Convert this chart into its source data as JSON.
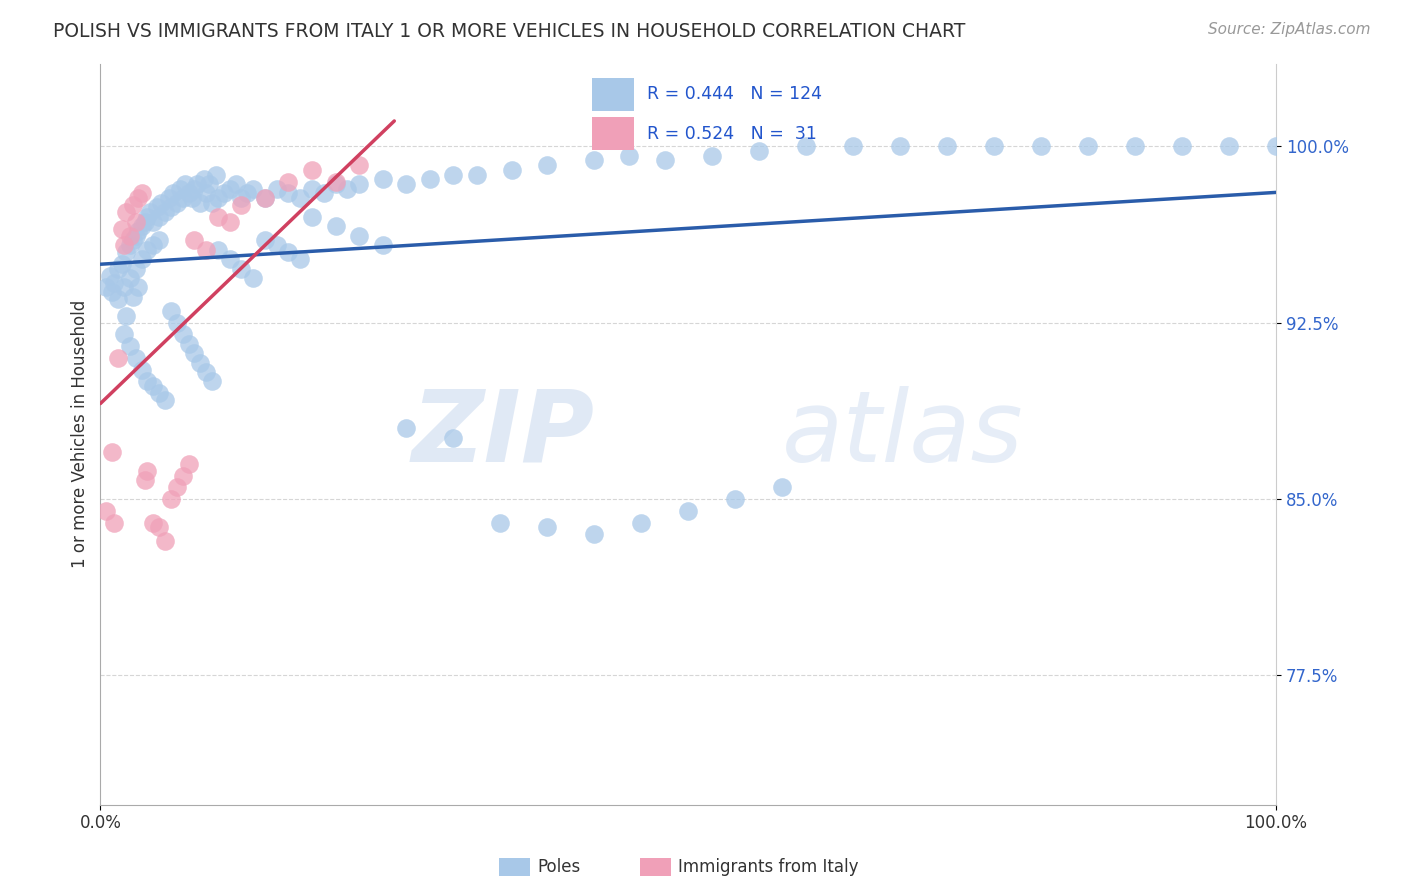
{
  "title": "POLISH VS IMMIGRANTS FROM ITALY 1 OR MORE VEHICLES IN HOUSEHOLD CORRELATION CHART",
  "source": "Source: ZipAtlas.com",
  "ylabel": "1 or more Vehicles in Household",
  "y_tick_labels": [
    "77.5%",
    "85.0%",
    "92.5%",
    "100.0%"
  ],
  "y_tick_positions": [
    0.775,
    0.85,
    0.925,
    1.0
  ],
  "xlim": [
    0.0,
    1.0
  ],
  "ylim": [
    0.72,
    1.035
  ],
  "legend_blue_label": "Poles",
  "legend_pink_label": "Immigrants from Italy",
  "blue_R": "0.444",
  "blue_N": "124",
  "pink_R": "0.524",
  "pink_N": "31",
  "blue_color": "#a8c8e8",
  "pink_color": "#f0a0b8",
  "blue_line_color": "#2a5caa",
  "pink_line_color": "#d04060",
  "watermark_zip": "ZIP",
  "watermark_atlas": "atlas",
  "background_color": "#ffffff",
  "blue_points_x": [
    0.005,
    0.008,
    0.01,
    0.012,
    0.015,
    0.015,
    0.018,
    0.02,
    0.022,
    0.022,
    0.025,
    0.025,
    0.028,
    0.028,
    0.03,
    0.03,
    0.032,
    0.032,
    0.035,
    0.035,
    0.038,
    0.04,
    0.04,
    0.042,
    0.045,
    0.045,
    0.048,
    0.05,
    0.05,
    0.052,
    0.055,
    0.058,
    0.06,
    0.062,
    0.065,
    0.068,
    0.07,
    0.072,
    0.075,
    0.078,
    0.08,
    0.082,
    0.085,
    0.088,
    0.09,
    0.092,
    0.095,
    0.098,
    0.1,
    0.105,
    0.11,
    0.115,
    0.12,
    0.125,
    0.13,
    0.14,
    0.15,
    0.16,
    0.17,
    0.18,
    0.19,
    0.2,
    0.21,
    0.22,
    0.24,
    0.26,
    0.28,
    0.3,
    0.32,
    0.35,
    0.38,
    0.42,
    0.45,
    0.48,
    0.52,
    0.56,
    0.6,
    0.64,
    0.68,
    0.72,
    0.76,
    0.8,
    0.84,
    0.88,
    0.92,
    0.96,
    1.0,
    0.02,
    0.025,
    0.03,
    0.035,
    0.04,
    0.045,
    0.05,
    0.055,
    0.06,
    0.065,
    0.07,
    0.075,
    0.08,
    0.085,
    0.09,
    0.095,
    0.1,
    0.11,
    0.12,
    0.13,
    0.14,
    0.15,
    0.16,
    0.17,
    0.18,
    0.2,
    0.22,
    0.24,
    0.26,
    0.3,
    0.34,
    0.38,
    0.42,
    0.46,
    0.5,
    0.54,
    0.58
  ],
  "blue_points_y": [
    0.94,
    0.945,
    0.938,
    0.942,
    0.948,
    0.935,
    0.95,
    0.94,
    0.955,
    0.928,
    0.958,
    0.944,
    0.96,
    0.936,
    0.962,
    0.948,
    0.964,
    0.94,
    0.966,
    0.952,
    0.968,
    0.97,
    0.956,
    0.972,
    0.968,
    0.958,
    0.974,
    0.97,
    0.96,
    0.976,
    0.972,
    0.978,
    0.974,
    0.98,
    0.976,
    0.982,
    0.978,
    0.984,
    0.98,
    0.978,
    0.982,
    0.984,
    0.976,
    0.986,
    0.98,
    0.984,
    0.976,
    0.988,
    0.978,
    0.98,
    0.982,
    0.984,
    0.978,
    0.98,
    0.982,
    0.978,
    0.982,
    0.98,
    0.978,
    0.982,
    0.98,
    0.984,
    0.982,
    0.984,
    0.986,
    0.984,
    0.986,
    0.988,
    0.988,
    0.99,
    0.992,
    0.994,
    0.996,
    0.994,
    0.996,
    0.998,
    1.0,
    1.0,
    1.0,
    1.0,
    1.0,
    1.0,
    1.0,
    1.0,
    1.0,
    1.0,
    1.0,
    0.92,
    0.915,
    0.91,
    0.905,
    0.9,
    0.898,
    0.895,
    0.892,
    0.93,
    0.925,
    0.92,
    0.916,
    0.912,
    0.908,
    0.904,
    0.9,
    0.956,
    0.952,
    0.948,
    0.944,
    0.96,
    0.958,
    0.955,
    0.952,
    0.97,
    0.966,
    0.962,
    0.958,
    0.88,
    0.876,
    0.84,
    0.838,
    0.835,
    0.84,
    0.845,
    0.85,
    0.855
  ],
  "pink_points_x": [
    0.005,
    0.01,
    0.012,
    0.015,
    0.018,
    0.02,
    0.022,
    0.025,
    0.028,
    0.03,
    0.032,
    0.035,
    0.038,
    0.04,
    0.045,
    0.05,
    0.055,
    0.06,
    0.065,
    0.07,
    0.075,
    0.08,
    0.09,
    0.1,
    0.11,
    0.12,
    0.14,
    0.16,
    0.18,
    0.2,
    0.22
  ],
  "pink_points_y": [
    0.845,
    0.87,
    0.84,
    0.91,
    0.965,
    0.958,
    0.972,
    0.962,
    0.975,
    0.968,
    0.978,
    0.98,
    0.858,
    0.862,
    0.84,
    0.838,
    0.832,
    0.85,
    0.855,
    0.86,
    0.865,
    0.96,
    0.956,
    0.97,
    0.968,
    0.975,
    0.978,
    0.985,
    0.99,
    0.985,
    0.992
  ]
}
